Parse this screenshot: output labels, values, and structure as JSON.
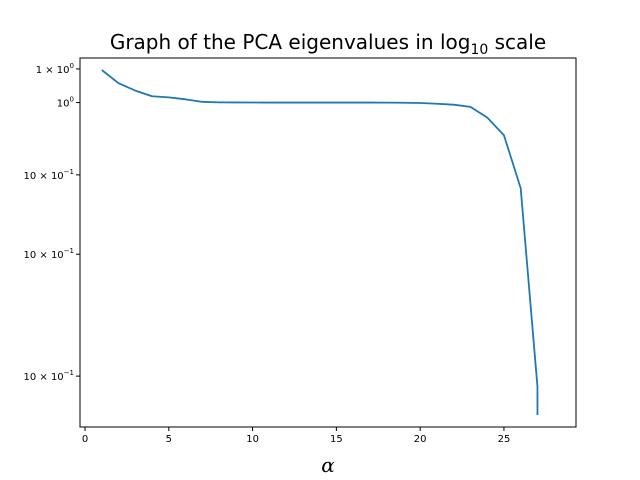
{
  "chart_data": {
    "type": "line",
    "title": {
      "prefix": "Graph of the PCA eigenvalues in log",
      "subscript": "10",
      "suffix": " scale"
    },
    "xlabel": "α",
    "ylabel": "",
    "xlim": [
      -0.3,
      29.3
    ],
    "ylim": [
      0.0045,
      2.1
    ],
    "yscale": "log",
    "grid": false,
    "legend": "none",
    "line_color": "#1f77b4",
    "x_ticks": [
      {
        "value": 0,
        "label": "0"
      },
      {
        "value": 5,
        "label": "5"
      },
      {
        "value": 10,
        "label": "10"
      },
      {
        "value": 15,
        "label": "15"
      },
      {
        "value": 20,
        "label": "20"
      },
      {
        "value": 25,
        "label": "25"
      }
    ],
    "y_ticks": [
      {
        "value": 1.75,
        "base": "1 × 10",
        "exp": "0"
      },
      {
        "value": 1.0,
        "base": "10",
        "exp": "0"
      },
      {
        "value": 0.3,
        "base": "10 × 10",
        "exp": "−1"
      },
      {
        "value": 0.08,
        "base": "10 × 10",
        "exp": "−1"
      },
      {
        "value": 0.0105,
        "base": "10 × 10",
        "exp": "−1"
      }
    ],
    "series": [
      {
        "x": [
          1,
          2,
          3,
          4,
          5,
          6,
          7,
          8,
          9,
          10,
          11,
          12,
          13,
          14,
          15,
          16,
          17,
          18,
          19,
          20,
          21,
          22,
          23,
          24,
          25,
          26,
          27,
          27
        ],
        "values": [
          1.72,
          1.38,
          1.22,
          1.11,
          1.09,
          1.055,
          1.012,
          1.003,
          1.002,
          1.001,
          1.0,
          1.0,
          1.0,
          1.0,
          1.0,
          1.0,
          1.0,
          0.999,
          0.997,
          0.992,
          0.98,
          0.965,
          0.93,
          0.78,
          0.58,
          0.24,
          0.0088,
          0.0055
        ]
      }
    ]
  }
}
